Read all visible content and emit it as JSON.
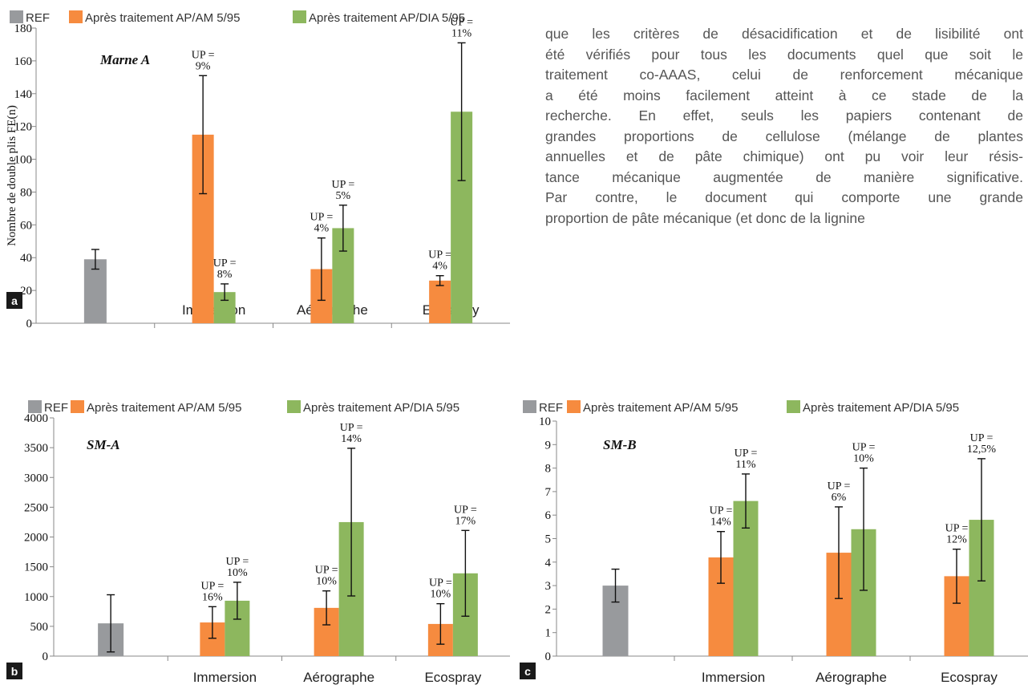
{
  "legend": {
    "ref": "REF",
    "am": "Après traitement AP/AM 5/95",
    "dia": "Après traitement AP/DIA 5/95"
  },
  "colors": {
    "ref": "#989a9d",
    "am": "#f68b3f",
    "dia": "#8db75e"
  },
  "text_lines": [
    "que les critères de désacidification et de lisibilité ont",
    "été vérifiés pour tous les documents quel que soit le",
    "traitement co-AAAS, celui de renforcement mécanique",
    "a été moins facilement atteint à ce stade de la",
    "recherche. En effet, seuls les papiers contenant de",
    "grandes proportions de cellulose (mélange de plantes",
    "annuelles et de pâte chimique) ont pu voir leur résis-",
    "tance mécanique augmentée de manière significative.",
    "Par contre, le document qui comporte une grande",
    "proportion de pâte mécanique (et donc de la lignine"
  ],
  "chart_data": [
    {
      "type": "bar",
      "panel": "a",
      "title": "Marne A",
      "ylabel": "Nombre de double plis FE(n)",
      "ylim": [
        0,
        180
      ],
      "yticks": [
        0,
        20,
        40,
        60,
        80,
        100,
        120,
        140,
        160,
        180
      ],
      "categories": [
        "",
        "Immersion",
        "Aérographe",
        "Ecospray"
      ],
      "series": [
        {
          "name": "REF",
          "key": "ref",
          "values": [
            39,
            null,
            null,
            null
          ],
          "errors": [
            6,
            null,
            null,
            null
          ],
          "annotations": [
            null,
            null,
            null,
            null
          ]
        },
        {
          "name": "Après traitement AP/AM 5/95",
          "key": "am",
          "values": [
            null,
            115,
            33,
            26
          ],
          "errors": [
            null,
            36,
            19,
            3
          ],
          "annotations": [
            null,
            [
              "UP =",
              "9%"
            ],
            [
              "UP =",
              "4%"
            ],
            [
              "UP =",
              "4%"
            ]
          ]
        },
        {
          "name": "Après traitement AP/DIA 5/95",
          "key": "dia",
          "values": [
            null,
            19,
            58,
            129
          ],
          "errors": [
            null,
            5,
            14,
            42
          ],
          "annotations": [
            null,
            [
              "UP =",
              "8%"
            ],
            [
              "UP =",
              "5%"
            ],
            [
              "UP =",
              "11%"
            ]
          ]
        }
      ]
    },
    {
      "type": "bar",
      "panel": "b",
      "title": "SM-A",
      "ylim": [
        0,
        4000
      ],
      "yticks": [
        0,
        500,
        1000,
        1500,
        2000,
        2500,
        3000,
        3500,
        4000
      ],
      "categories": [
        "",
        "Immersion",
        "Aérographe",
        "Ecospray"
      ],
      "series": [
        {
          "name": "REF",
          "key": "ref",
          "values": [
            550,
            null,
            null,
            null
          ],
          "errors": [
            480,
            null,
            null,
            null
          ],
          "annotations": [
            null,
            null,
            null,
            null
          ]
        },
        {
          "name": "Après traitement AP/AM 5/95",
          "key": "am",
          "values": [
            null,
            565,
            810,
            540
          ],
          "errors": [
            null,
            265,
            285,
            340
          ],
          "annotations": [
            null,
            [
              "UP =",
              "16%"
            ],
            [
              "UP =",
              "10%"
            ],
            [
              "UP =",
              "10%"
            ]
          ]
        },
        {
          "name": "Après traitement AP/DIA 5/95",
          "key": "dia",
          "values": [
            null,
            930,
            2250,
            1390
          ],
          "errors": [
            null,
            310,
            1240,
            720
          ],
          "annotations": [
            null,
            [
              "UP =",
              "10%"
            ],
            [
              "UP =",
              "14%"
            ],
            [
              "UP =",
              "17%"
            ]
          ]
        }
      ]
    },
    {
      "type": "bar",
      "panel": "c",
      "title": "SM-B",
      "ylim": [
        0,
        10
      ],
      "yticks": [
        0,
        1,
        2,
        3,
        4,
        5,
        6,
        7,
        8,
        9,
        10
      ],
      "categories": [
        "",
        "Immersion",
        "Aérographe",
        "Ecospray"
      ],
      "series": [
        {
          "name": "REF",
          "key": "ref",
          "values": [
            3.0,
            null,
            null,
            null
          ],
          "errors": [
            0.7,
            null,
            null,
            null
          ],
          "annotations": [
            null,
            null,
            null,
            null
          ]
        },
        {
          "name": "Après traitement AP/AM 5/95",
          "key": "am",
          "values": [
            null,
            4.2,
            4.4,
            3.4
          ],
          "errors": [
            null,
            1.1,
            1.95,
            1.15
          ],
          "annotations": [
            null,
            [
              "UP =",
              "14%"
            ],
            [
              "UP =",
              "6%"
            ],
            [
              "UP =",
              "12%"
            ]
          ]
        },
        {
          "name": "Après traitement AP/DIA 5/95",
          "key": "dia",
          "values": [
            null,
            6.6,
            5.4,
            5.8
          ],
          "errors": [
            null,
            1.15,
            2.6,
            2.6
          ],
          "annotations": [
            null,
            [
              "UP =",
              "11%"
            ],
            [
              "UP =",
              "10%"
            ],
            [
              "UP =",
              "12,5%"
            ]
          ]
        }
      ]
    }
  ]
}
